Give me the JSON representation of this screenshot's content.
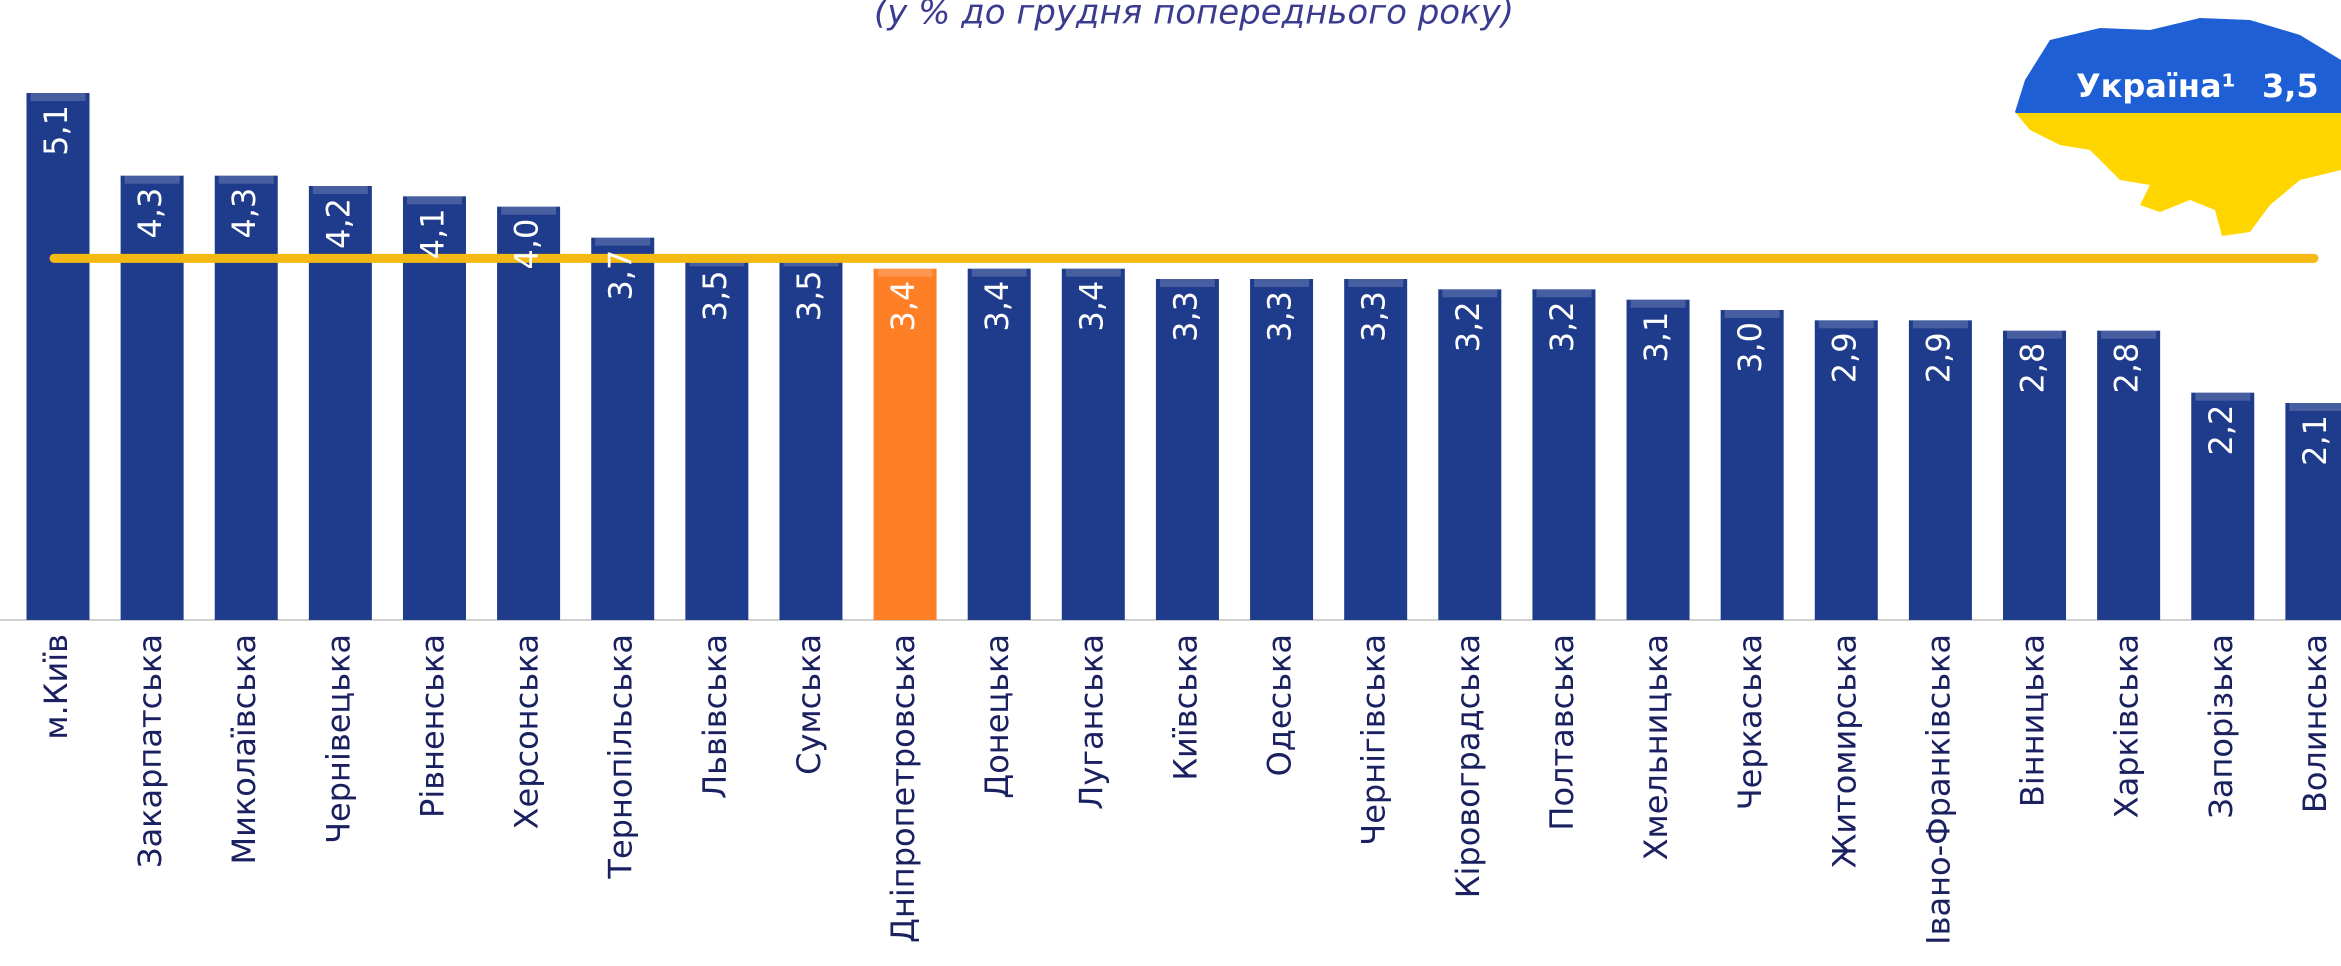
{
  "chart_data": {
    "type": "bar",
    "subtitle": "(у % до грудня попереднього року)",
    "categories": [
      "м.Київ",
      "Закарпатська",
      "Миколаївська",
      "Чернівецька",
      "Рівненська",
      "Херсонська",
      "Тернопільська",
      "Львівська",
      "Сумська",
      "Дніпропетровська",
      "Донецька",
      "Луганська",
      "Київська",
      "Одеська",
      "Чернігівська",
      "Кіровоградська",
      "Полтавська",
      "Хмельницька",
      "Черкаська",
      "Житомирська",
      "Івано-Франківська",
      "Вінницька",
      "Харківська",
      "Запорізька",
      "Волинська"
    ],
    "values": [
      5.1,
      4.3,
      4.3,
      4.2,
      4.1,
      4.0,
      3.7,
      3.5,
      3.5,
      3.4,
      3.4,
      3.4,
      3.3,
      3.3,
      3.3,
      3.2,
      3.2,
      3.1,
      3.0,
      2.9,
      2.9,
      2.8,
      2.8,
      2.2,
      2.1
    ],
    "value_labels": [
      "5,1",
      "4,3",
      "4,3",
      "4,2",
      "4,1",
      "4,0",
      "3,7",
      "3,5",
      "3,5",
      "3,4",
      "3,4",
      "3,4",
      "3,3",
      "3,3",
      "3,3",
      "3,2",
      "3,2",
      "3,1",
      "3,0",
      "2,9",
      "2,9",
      "2,8",
      "2,8",
      "2,2",
      "2,1"
    ],
    "colors": [
      "#1f3c8c",
      "#1f3c8c",
      "#1f3c8c",
      "#1f3c8c",
      "#1f3c8c",
      "#1f3c8c",
      "#1f3c8c",
      "#1f3c8c",
      "#1f3c8c",
      "#ff7f27",
      "#1f3c8c",
      "#1f3c8c",
      "#1f3c8c",
      "#1f3c8c",
      "#1f3c8c",
      "#1f3c8c",
      "#1f3c8c",
      "#1f3c8c",
      "#1f3c8c",
      "#1f3c8c",
      "#1f3c8c",
      "#1f3c8c",
      "#1f3c8c",
      "#1f3c8c",
      "#1f3c8c"
    ],
    "ylim": [
      0,
      6
    ],
    "reference": {
      "label": "Україна¹",
      "value": 3.5,
      "value_label": "3,5",
      "color": "#f5b914"
    }
  }
}
